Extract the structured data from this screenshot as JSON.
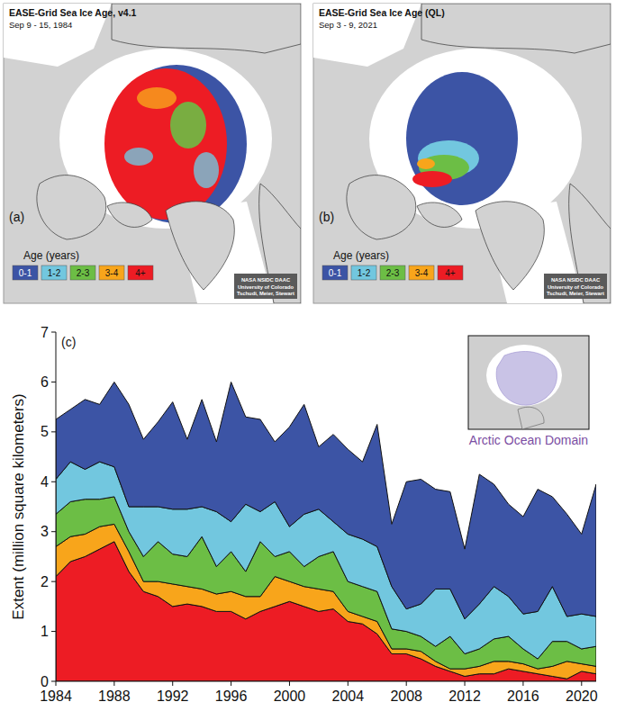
{
  "maps": [
    {
      "panel_label": "(a)",
      "title": "EASE-Grid Sea Ice Age, v4.1",
      "date": "Sep 9 - 15, 1984",
      "legend_title": "Age (years)",
      "credit": [
        "NASA NSIDC DAAC",
        "University of Colorado",
        "Tschudi, Meier, Stewart"
      ]
    },
    {
      "panel_label": "(b)",
      "title": "EASE-Grid Sea Ice Age (QL)",
      "date": "Sep 3 - 9, 2021",
      "legend_title": "Age (years)",
      "credit": [
        "NASA NSIDC DAAC",
        "University of Colorado",
        "Tschudi, Meier, Stewart"
      ]
    }
  ],
  "chart_data": {
    "type": "area",
    "stacked": true,
    "panel_label": "(c)",
    "inset_label": "Arctic Ocean Domain",
    "ylabel": "Extent (million square kilometers)",
    "x": [
      1984,
      1985,
      1986,
      1987,
      1988,
      1989,
      1990,
      1991,
      1992,
      1993,
      1994,
      1995,
      1996,
      1997,
      1998,
      1999,
      2000,
      2001,
      2002,
      2003,
      2004,
      2005,
      2006,
      2007,
      2008,
      2009,
      2010,
      2011,
      2012,
      2013,
      2014,
      2015,
      2016,
      2017,
      2018,
      2019,
      2020,
      2021
    ],
    "xlim": [
      1984,
      2021
    ],
    "xticks": [
      1984,
      1988,
      1992,
      1996,
      2000,
      2004,
      2008,
      2012,
      2016,
      2020
    ],
    "ylim": [
      0,
      7
    ],
    "yticks": [
      0,
      1,
      2,
      3,
      4,
      5,
      6,
      7
    ],
    "series": [
      {
        "name": "4+",
        "color": "#ed1c24",
        "values": [
          2.1,
          2.4,
          2.5,
          2.65,
          2.8,
          2.2,
          1.8,
          1.7,
          1.5,
          1.55,
          1.5,
          1.4,
          1.4,
          1.25,
          1.4,
          1.5,
          1.6,
          1.5,
          1.4,
          1.45,
          1.2,
          1.15,
          0.95,
          0.55,
          0.55,
          0.45,
          0.3,
          0.2,
          0.1,
          0.15,
          0.15,
          0.25,
          0.2,
          0.15,
          0.1,
          0.05,
          0.2,
          0.15
        ]
      },
      {
        "name": "3-4",
        "color": "#f8a51b",
        "values": [
          0.6,
          0.5,
          0.45,
          0.45,
          0.35,
          0.4,
          0.2,
          0.3,
          0.45,
          0.35,
          0.35,
          0.35,
          0.4,
          0.45,
          0.3,
          0.6,
          0.4,
          0.4,
          0.45,
          0.35,
          0.2,
          0.15,
          0.25,
          0.1,
          0.1,
          0.15,
          0.1,
          0.05,
          0.15,
          0.15,
          0.25,
          0.15,
          0.15,
          0.1,
          0.2,
          0.35,
          0.15,
          0.15
        ]
      },
      {
        "name": "2-3",
        "color": "#6cbe45",
        "values": [
          0.65,
          0.7,
          0.7,
          0.55,
          0.55,
          0.4,
          0.5,
          0.8,
          0.6,
          0.6,
          1.05,
          0.55,
          0.8,
          0.5,
          1.1,
          0.4,
          0.6,
          0.4,
          0.65,
          0.8,
          0.6,
          0.6,
          0.6,
          0.4,
          0.35,
          0.3,
          0.3,
          0.65,
          0.3,
          0.35,
          0.45,
          0.5,
          0.3,
          0.2,
          0.5,
          0.4,
          0.3,
          0.4
        ]
      },
      {
        "name": "1-2",
        "color": "#72c7df",
        "values": [
          0.7,
          0.8,
          0.6,
          0.75,
          0.6,
          0.5,
          1.0,
          0.7,
          0.9,
          0.95,
          0.6,
          1.1,
          0.6,
          1.35,
          0.6,
          1.1,
          0.5,
          1.05,
          0.95,
          0.6,
          0.95,
          0.95,
          0.9,
          0.85,
          0.45,
          0.65,
          1.15,
          0.95,
          0.7,
          0.9,
          1.05,
          0.8,
          0.7,
          0.95,
          1.1,
          0.5,
          0.7,
          0.6
        ]
      },
      {
        "name": "0-1",
        "color": "#3c54a5",
        "values": [
          1.2,
          1.05,
          1.4,
          1.15,
          1.7,
          2.05,
          1.35,
          1.7,
          2.15,
          1.4,
          2.15,
          1.4,
          2.8,
          1.75,
          1.85,
          1.2,
          2.0,
          2.2,
          1.25,
          1.75,
          1.7,
          1.55,
          2.45,
          1.25,
          2.55,
          2.5,
          2.0,
          1.95,
          1.4,
          2.6,
          2.05,
          1.85,
          1.95,
          2.45,
          1.8,
          2.05,
          1.6,
          2.65
        ]
      }
    ]
  }
}
